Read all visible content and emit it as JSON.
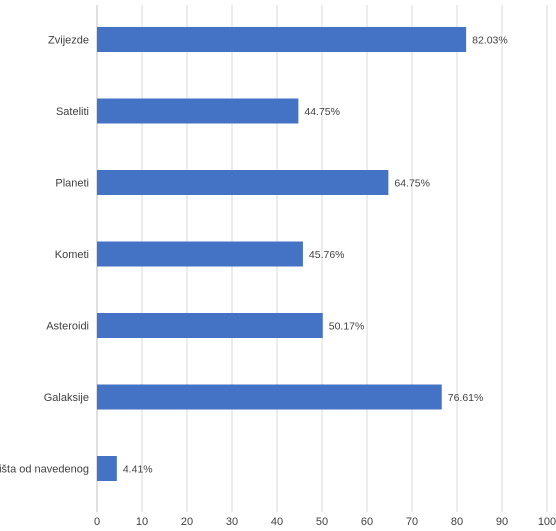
{
  "chart_data": {
    "type": "bar",
    "orientation": "horizontal",
    "categories": [
      "Zvijezde",
      "Sateliti",
      "Planeti",
      "Kometi",
      "Asteroidi",
      "Galaksije",
      "Ništa od navedenog"
    ],
    "values": [
      82.03,
      44.75,
      64.75,
      45.76,
      50.17,
      76.61,
      4.41
    ],
    "value_labels": [
      "82.03%",
      "44.75%",
      "64.75%",
      "45.76%",
      "50.17%",
      "76.61%",
      "4.41%"
    ],
    "title": "",
    "xlabel": "",
    "ylabel": "",
    "xlim": [
      0,
      100
    ],
    "xticks": [
      0,
      10,
      20,
      30,
      40,
      50,
      60,
      70,
      80,
      90,
      100
    ],
    "grid": true,
    "bar_color": "#4472c4"
  }
}
